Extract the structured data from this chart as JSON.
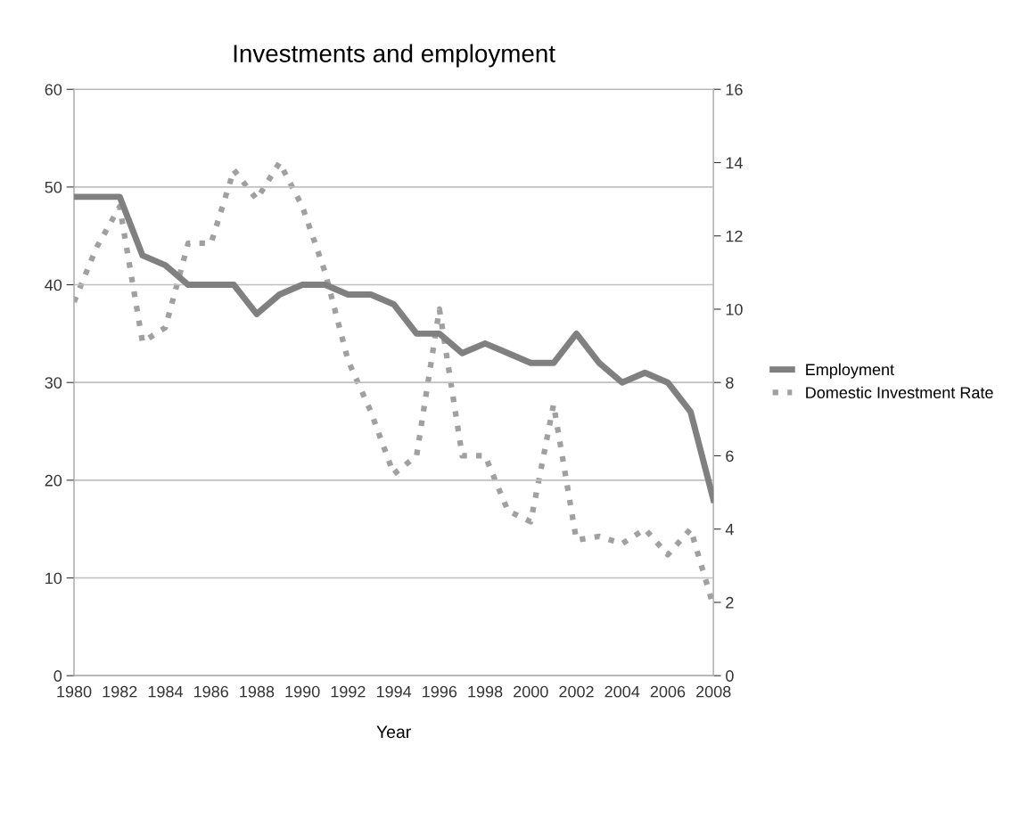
{
  "chart_data": {
    "type": "line",
    "title": "Investments and employment",
    "xlabel": "Year",
    "x": [
      1980,
      1981,
      1982,
      1983,
      1984,
      1985,
      1986,
      1987,
      1988,
      1989,
      1990,
      1991,
      1992,
      1993,
      1994,
      1995,
      1996,
      1997,
      1998,
      1999,
      2000,
      2001,
      2002,
      2003,
      2004,
      2005,
      2006,
      2007,
      2008
    ],
    "series": [
      {
        "name": "Employment",
        "color": "#808080",
        "line_style": "solid",
        "values": [
          49,
          49,
          49,
          43,
          42,
          40,
          40,
          40,
          37,
          39,
          40,
          40,
          39,
          39,
          38,
          35,
          35,
          33,
          34,
          33,
          32,
          32,
          35,
          32,
          30,
          31,
          30,
          27,
          18
        ]
      },
      {
        "name": "Domestic Investment Rate",
        "color": "#a0a0a0",
        "line_style": "dotted",
        "axis": "y2",
        "values": [
          10.2,
          11.7,
          12.8,
          9.1,
          9.5,
          11.8,
          11.8,
          13.8,
          13.0,
          14.0,
          12.8,
          11.0,
          8.6,
          7.2,
          5.5,
          6.0,
          10.0,
          6.0,
          6.0,
          4.5,
          4.2,
          7.4,
          3.7,
          3.8,
          3.6,
          4.0,
          3.3,
          4.0,
          1.9
        ]
      }
    ],
    "xlim": [
      1980,
      2008
    ],
    "xticks": [
      1980,
      1982,
      1984,
      1986,
      1988,
      1990,
      1992,
      1994,
      1996,
      1998,
      2000,
      2002,
      2004,
      2006,
      2008
    ],
    "ylim": [
      0,
      60
    ],
    "yticks": [
      0,
      10,
      20,
      30,
      40,
      50,
      60
    ],
    "y2lim": [
      0,
      16
    ],
    "y2ticks": [
      0,
      2,
      4,
      6,
      8,
      10,
      12,
      14,
      16
    ],
    "grid": "y",
    "legend": "right",
    "marker": "none"
  }
}
